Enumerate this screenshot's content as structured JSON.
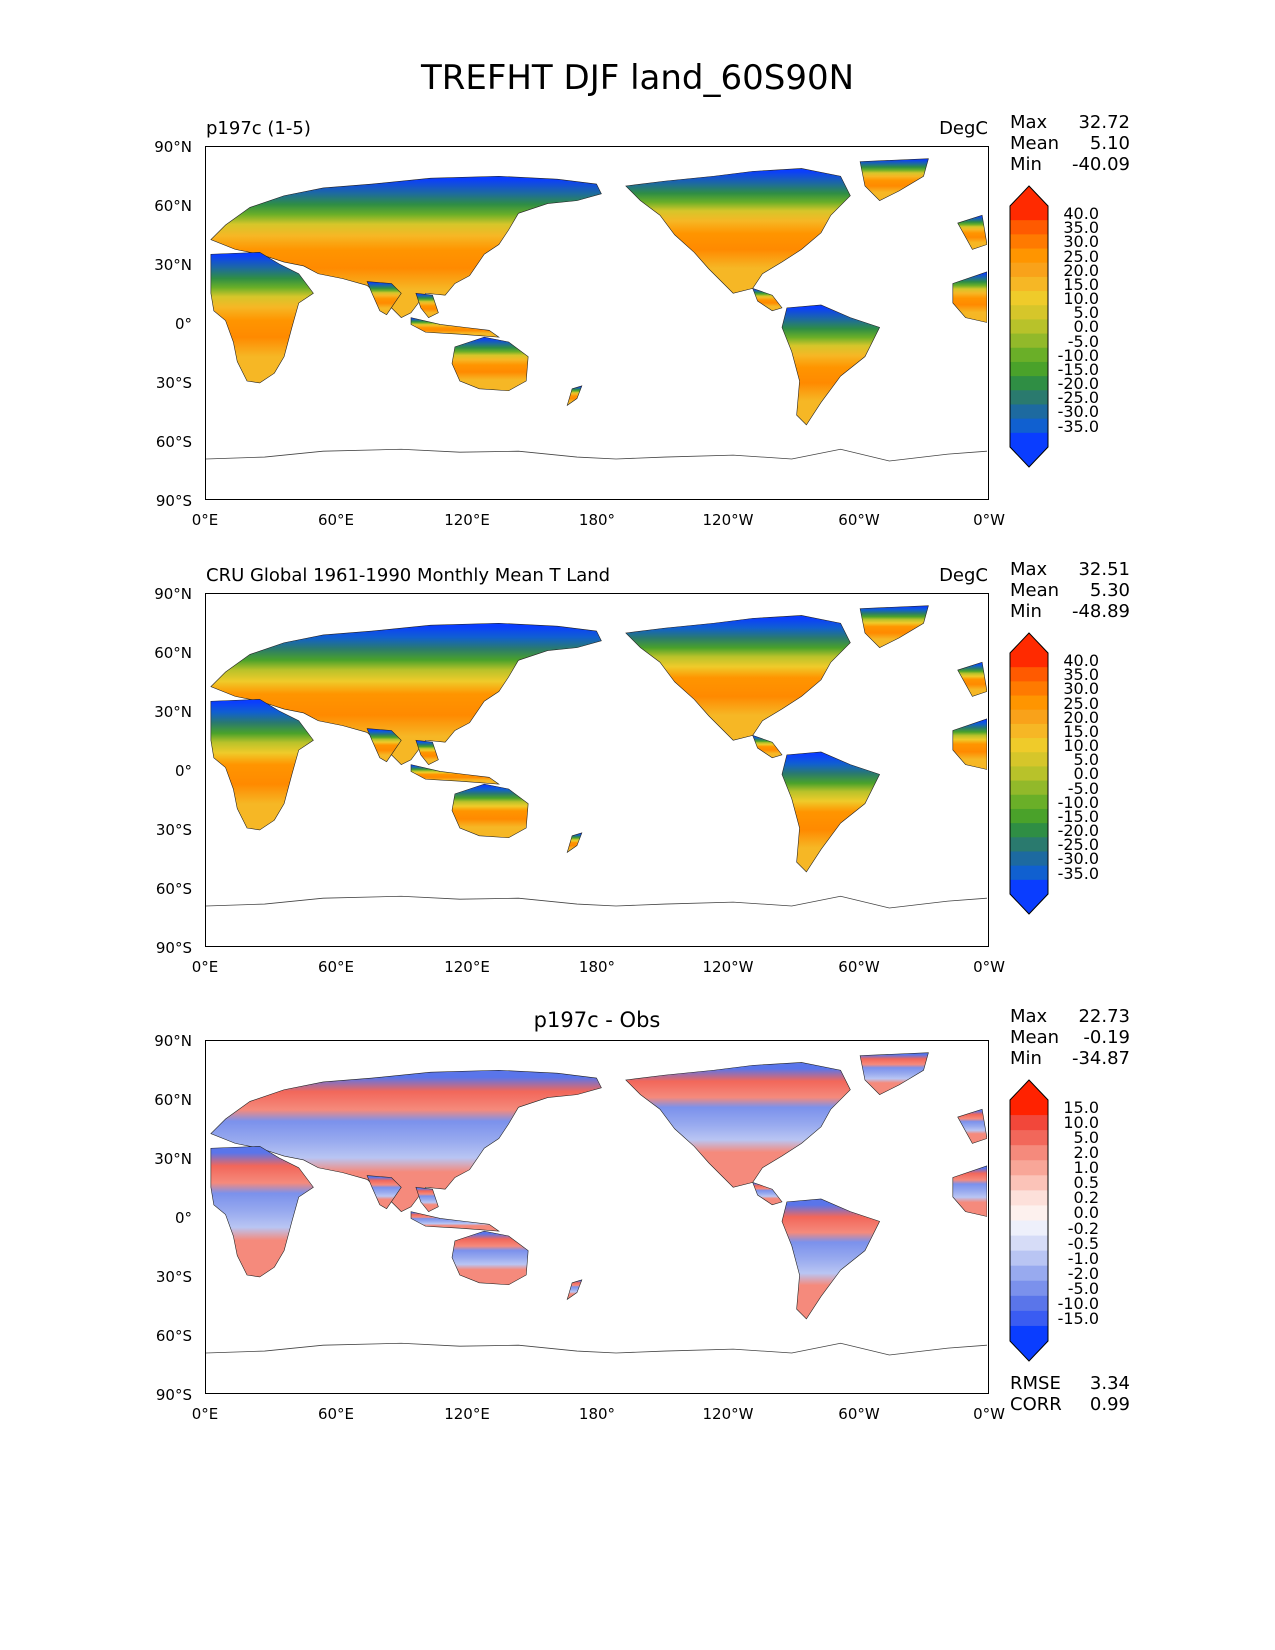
{
  "figure": {
    "title": "TREFHT DJF land_60S90N"
  },
  "axes": {
    "y_ticks": [
      "90°N",
      "60°N",
      "30°N",
      "0°",
      "30°S",
      "60°S",
      "90°S"
    ],
    "x_ticks": [
      "0°E",
      "60°E",
      "120°E",
      "180°",
      "120°W",
      "60°W",
      "0°W"
    ]
  },
  "panels": [
    {
      "title_left": "p197c (1-5)",
      "title_center": "",
      "units": "DegC",
      "stats": {
        "max_label": "Max",
        "max": "32.72",
        "mean_label": "Mean",
        "mean": "5.10",
        "min_label": "Min",
        "min": "-40.09"
      },
      "colorbar": {
        "labels": [
          "40.0",
          "35.0",
          "30.0",
          "25.0",
          "20.0",
          "15.0",
          "10.0",
          "5.0",
          "0.0",
          "-5.0",
          "-10.0",
          "-15.0",
          "-20.0",
          "-25.0",
          "-30.0",
          "-35.0"
        ],
        "colors": [
          "#ff2a00",
          "#ff5a00",
          "#ff7a00",
          "#ff9500",
          "#f9a21a",
          "#f6b725",
          "#efcb2a",
          "#d6c62a",
          "#b8c22a",
          "#92b92a",
          "#6aaf28",
          "#4aa22a",
          "#2f8e44",
          "#2a7a6e",
          "#1d6aa0",
          "#1060d0",
          "#0a3dff"
        ]
      }
    },
    {
      "title_left": "CRU Global 1961-1990 Monthly Mean T Land",
      "title_center": "",
      "units": "DegC",
      "stats": {
        "max_label": "Max",
        "max": "32.51",
        "mean_label": "Mean",
        "mean": "5.30",
        "min_label": "Min",
        "min": "-48.89"
      },
      "colorbar": {
        "labels": [
          "40.0",
          "35.0",
          "30.0",
          "25.0",
          "20.0",
          "15.0",
          "10.0",
          "5.0",
          "0.0",
          "-5.0",
          "-10.0",
          "-15.0",
          "-20.0",
          "-25.0",
          "-30.0",
          "-35.0"
        ],
        "colors": [
          "#ff2a00",
          "#ff5a00",
          "#ff7a00",
          "#ff9500",
          "#f9a21a",
          "#f6b725",
          "#efcb2a",
          "#d6c62a",
          "#b8c22a",
          "#92b92a",
          "#6aaf28",
          "#4aa22a",
          "#2f8e44",
          "#2a7a6e",
          "#1d6aa0",
          "#1060d0",
          "#0a3dff"
        ]
      }
    },
    {
      "title_left": "",
      "title_center": "p197c - Obs",
      "units": "",
      "stats": {
        "max_label": "Max",
        "max": "22.73",
        "mean_label": "Mean",
        "mean": "-0.19",
        "min_label": "Min",
        "min": "-34.87"
      },
      "extra_stats": {
        "rmse_label": "RMSE",
        "rmse": "3.34",
        "corr_label": "CORR",
        "corr": "0.99"
      },
      "colorbar": {
        "labels": [
          "15.0",
          "10.0",
          "5.0",
          "2.0",
          "1.0",
          "0.5",
          "0.2",
          "0.0",
          "-0.2",
          "-0.5",
          "-1.0",
          "-2.0",
          "-5.0",
          "-10.0",
          "-15.0"
        ],
        "colors": [
          "#ff2200",
          "#f2473a",
          "#f2675a",
          "#f58a7c",
          "#f8a698",
          "#fbc3b8",
          "#fde0da",
          "#fdf1ee",
          "#eef0fb",
          "#d6dcf7",
          "#b9c5f3",
          "#98aaef",
          "#7b91ec",
          "#5a75ea",
          "#3a5cf2",
          "#0a3dff"
        ]
      }
    }
  ]
}
